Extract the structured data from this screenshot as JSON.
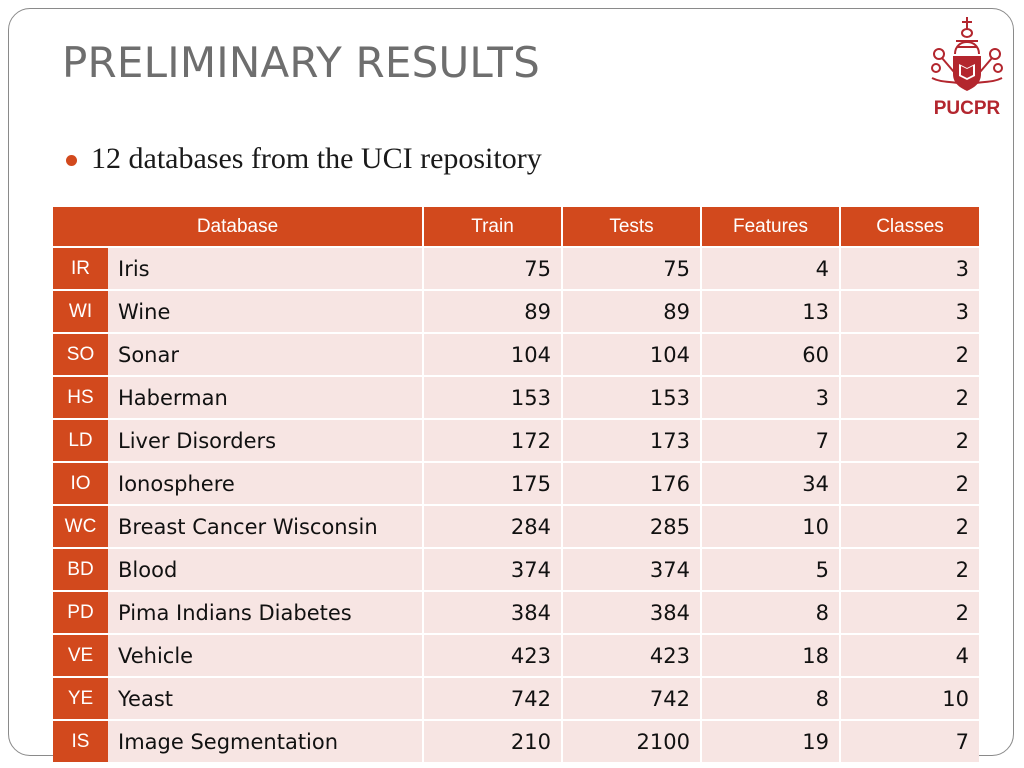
{
  "slide": {
    "title": "PRELIMINARY RESULTS",
    "bullet": "12 databases from the UCI repository",
    "logo_text": "PUCPR",
    "accent_color": "#d2491d"
  },
  "table": {
    "headers": {
      "database": "Database",
      "train": "Train",
      "tests": "Tests",
      "features": "Features",
      "classes": "Classes"
    },
    "rows": [
      {
        "abbr": "IR",
        "name": "Iris",
        "train": "75",
        "tests": "75",
        "features": "4",
        "classes": "3"
      },
      {
        "abbr": "WI",
        "name": "Wine",
        "train": "89",
        "tests": "89",
        "features": "13",
        "classes": "3"
      },
      {
        "abbr": "SO",
        "name": "Sonar",
        "train": "104",
        "tests": "104",
        "features": "60",
        "classes": "2"
      },
      {
        "abbr": "HS",
        "name": "Haberman",
        "train": "153",
        "tests": "153",
        "features": "3",
        "classes": "2"
      },
      {
        "abbr": "LD",
        "name": "Liver Disorders",
        "train": "172",
        "tests": "173",
        "features": "7",
        "classes": "2"
      },
      {
        "abbr": "IO",
        "name": "Ionosphere",
        "train": "175",
        "tests": "176",
        "features": "34",
        "classes": "2"
      },
      {
        "abbr": "WC",
        "name": "Breast Cancer Wisconsin",
        "train": "284",
        "tests": "285",
        "features": "10",
        "classes": "2"
      },
      {
        "abbr": "BD",
        "name": "Blood",
        "train": "374",
        "tests": "374",
        "features": "5",
        "classes": "2"
      },
      {
        "abbr": "PD",
        "name": "Pima Indians Diabetes",
        "train": "384",
        "tests": "384",
        "features": "8",
        "classes": "2"
      },
      {
        "abbr": "VE",
        "name": "Vehicle",
        "train": "423",
        "tests": "423",
        "features": "18",
        "classes": "4"
      },
      {
        "abbr": "YE",
        "name": "Yeast",
        "train": "742",
        "tests": "742",
        "features": "8",
        "classes": "10"
      },
      {
        "abbr": "IS",
        "name": "Image Segmentation",
        "train": "210",
        "tests": "2100",
        "features": "19",
        "classes": "7"
      }
    ]
  }
}
